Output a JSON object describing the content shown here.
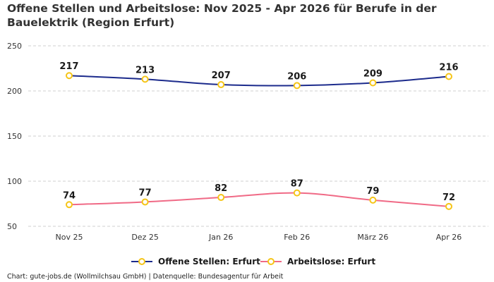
{
  "chart_data": {
    "type": "line",
    "title": "Offene Stellen und Arbeitslose: Nov 2025 - Apr 2026 für Berufe in der Bauelektrik (Region Erfurt)",
    "categories": [
      "Nov 25",
      "Dez 25",
      "Jan 26",
      "Feb 26",
      "März 26",
      "Apr 26"
    ],
    "series": [
      {
        "name": "Offene Stellen: Erfurt",
        "values": [
          217,
          213,
          207,
          206,
          209,
          216
        ],
        "color": "#1c2b8c"
      },
      {
        "name": "Arbeitslose: Erfurt",
        "values": [
          74,
          77,
          82,
          87,
          79,
          72
        ],
        "color": "#f06a86"
      }
    ],
    "y_ticks": [
      50,
      100,
      150,
      200,
      250
    ],
    "ylim": [
      50,
      250
    ],
    "grid": true,
    "legend_position": "bottom",
    "marker_color": "#f5c518"
  },
  "footer": "Chart: gute-jobs.de (Wollmilchsau GmbH) | Datenquelle: Bundesagentur für Arbeit"
}
